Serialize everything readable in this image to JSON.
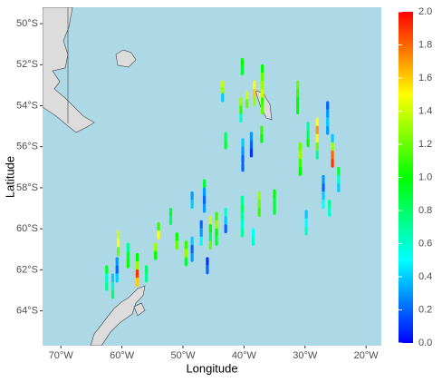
{
  "chart_data": {
    "type": "map",
    "x_label": "Longitude",
    "y_label": "Latitude",
    "xlim": [
      -73,
      -17.5
    ],
    "xticks": [
      {
        "value": -70,
        "label": "70°W"
      },
      {
        "value": -60,
        "label": "60°W"
      },
      {
        "value": -50,
        "label": "50°W"
      },
      {
        "value": -40,
        "label": "40°W"
      },
      {
        "value": -30,
        "label": "30°W"
      },
      {
        "value": -20,
        "label": "20°W"
      }
    ],
    "ylim": [
      -65.7,
      -49.2
    ],
    "yticks": [
      {
        "value": -50,
        "label": "50°S"
      },
      {
        "value": -52,
        "label": "52°S"
      },
      {
        "value": -54,
        "label": "54°S"
      },
      {
        "value": -56,
        "label": "56°S"
      },
      {
        "value": -58,
        "label": "58°S"
      },
      {
        "value": -60,
        "label": "60°S"
      },
      {
        "value": -62,
        "label": "62°S"
      },
      {
        "value": -64,
        "label": "64°S"
      }
    ],
    "clim": [
      0,
      2
    ],
    "cticks": [
      {
        "value": 0,
        "label": "0.0"
      },
      {
        "value": 0.2,
        "label": "0.2"
      },
      {
        "value": 0.4,
        "label": "0.4"
      },
      {
        "value": 0.6,
        "label": "0.6"
      },
      {
        "value": 0.8,
        "label": "0.8"
      },
      {
        "value": 1,
        "label": "1.0"
      },
      {
        "value": 1.2,
        "label": "1.2"
      },
      {
        "value": 1.4,
        "label": "1.4"
      },
      {
        "value": 1.6,
        "label": "1.6"
      },
      {
        "value": 1.8,
        "label": "1.8"
      },
      {
        "value": 2,
        "label": "2.0"
      }
    ],
    "colorscale": [
      "#0000ff",
      "#00ffff",
      "#00ff00",
      "#ffff00",
      "#ff0000"
    ],
    "ocean_color": "#add8e6",
    "x": [
      -43.5,
      -43.5,
      -43.5,
      -40.3,
      -40.3,
      -37,
      -37,
      -37,
      -37,
      -37,
      -37,
      -38.3,
      -38.3,
      -38.3,
      -40.5,
      -40.5,
      -40.5,
      -39.5,
      -39.5,
      -38.8,
      -38.8,
      -38.8,
      -40.2,
      -40.2,
      -40.2,
      -40.2,
      -43,
      -43,
      -37.1,
      -37.1,
      -31.2,
      -31.2,
      -31.2,
      -31.2,
      -26.3,
      -26.3,
      -26.3,
      -26.3,
      -25.5,
      -25.5,
      -25.5,
      -25.5,
      -28,
      -28,
      -28,
      -28,
      -28,
      -29.5,
      -29.5,
      -29.5,
      -30.8,
      -30.8,
      -30.8,
      -30.8,
      -24.5,
      -24.5,
      -24.5,
      -27,
      -27,
      -27,
      -27,
      -29.8,
      -29.8,
      -29.8,
      -26,
      -26,
      -37.5,
      -37.5,
      -37.5,
      -35,
      -35,
      -35,
      -40.3,
      -40.3,
      -40.3,
      -40.3,
      -40.3,
      -38.5,
      -38.5,
      -46.5,
      -46.5,
      -46.5,
      -46.5,
      -48.5,
      -48.5,
      -44.5,
      -44.5,
      -44.5,
      -44.5,
      -45.5,
      -45.5,
      -45.5,
      -45.5,
      -47,
      -47,
      -47,
      -43,
      -43,
      -43,
      -48.5,
      -48.5,
      -48.5,
      -49.5,
      -49.5,
      -49.5,
      -52,
      -52,
      -51,
      -51,
      -54,
      -54,
      -54.5,
      -54.5,
      -46,
      -46,
      -60.6,
      -60.6,
      -60.6,
      -59,
      -59,
      -59,
      -57.5,
      -57.5,
      -57.5,
      -57.5,
      -60.8,
      -60.8,
      -60.8,
      -62.5,
      -62.5,
      -62.5,
      -61.5,
      -61.5,
      -61.5,
      -56,
      -56
    ],
    "y": [
      -53,
      -53.3,
      -53.6,
      -51.9,
      -52.3,
      -52.2,
      -52.6,
      -53,
      -53.4,
      -53.8,
      -54.2,
      -53,
      -53.4,
      -53.8,
      -53.8,
      -54.2,
      -54.6,
      -53.5,
      -53.9,
      -55.5,
      -55.9,
      -56.3,
      -55.8,
      -56.2,
      -56.6,
      -57,
      -55.5,
      -55.9,
      -55.2,
      -55.6,
      -53,
      -53.4,
      -53.8,
      -54.2,
      -54,
      -54.4,
      -54.8,
      -55.2,
      -55.6,
      -56,
      -56.4,
      -56.8,
      -54.8,
      -55.2,
      -55.6,
      -56,
      -56.4,
      -55,
      -55.4,
      -55.8,
      -56,
      -56.4,
      -56.8,
      -57.2,
      -57.2,
      -57.6,
      -58,
      -57.6,
      -58,
      -58.4,
      -58.8,
      -59.3,
      -59.7,
      -60.1,
      -58.8,
      -59.2,
      -58.4,
      -58.8,
      -59.2,
      -58.3,
      -58.7,
      -59.1,
      -58.6,
      -59,
      -59.4,
      -59.8,
      -60.2,
      -60.2,
      -60.6,
      -57.8,
      -58.2,
      -58.6,
      -59,
      -58.4,
      -58.8,
      -59.4,
      -59.8,
      -60.2,
      -60.6,
      -59.6,
      -60,
      -60.4,
      -60.8,
      -59.8,
      -60.2,
      -60.6,
      -59.2,
      -59.6,
      -60,
      -60.6,
      -61,
      -61.4,
      -60.8,
      -61.2,
      -61.6,
      -59.2,
      -59.6,
      -60.4,
      -60.8,
      -59.9,
      -60.3,
      -60.9,
      -61.3,
      -61.6,
      -62,
      -60.3,
      -60.7,
      -61.1,
      -60.9,
      -61.3,
      -61.7,
      -61.4,
      -61.8,
      -62.2,
      -62.6,
      -61.6,
      -62,
      -62.4,
      -62,
      -62.4,
      -62.8,
      -62.4,
      -62.8,
      -63.2,
      -62,
      -62.4
    ],
    "values": [
      1.4,
      1.3,
      0.4,
      1,
      0.9,
      1,
      1.2,
      1.3,
      1.4,
      1.1,
      1.2,
      1.5,
      1.6,
      1.3,
      1.3,
      1.1,
      0.6,
      1.4,
      1.2,
      0.3,
      0.2,
      0.1,
      0.4,
      0.3,
      0.2,
      0.2,
      0.8,
      0.9,
      1.1,
      1,
      1.2,
      1.1,
      1,
      1,
      0.2,
      0.3,
      0.4,
      0.3,
      0.4,
      1.3,
      1.8,
      1.9,
      1.5,
      1.7,
      1.5,
      1.2,
      0.7,
      0.7,
      0.8,
      1,
      1.2,
      1.3,
      1.1,
      1,
      0.9,
      0.6,
      0.4,
      0.3,
      0.2,
      0.4,
      0.5,
      0.4,
      0.5,
      0.6,
      0.7,
      0.6,
      1.3,
      1.2,
      1.1,
      1,
      0.9,
      0.9,
      0.7,
      0.8,
      0.7,
      0.6,
      0.7,
      0.5,
      0.6,
      0.9,
      0.3,
      0.2,
      0.3,
      0.3,
      0.4,
      1.1,
      1.3,
      1,
      0.9,
      1.4,
      1,
      0.8,
      1.2,
      0.2,
      0.3,
      0.5,
      0.6,
      0.4,
      0.2,
      0.4,
      0.2,
      0.3,
      1.1,
      1.3,
      0.9,
      0.9,
      0.8,
      1,
      1.2,
      1.1,
      1.5,
      1.3,
      1,
      0.1,
      0.2,
      1.4,
      1.5,
      1.2,
      0.7,
      0.9,
      1,
      1,
      1.3,
      1.9,
      1.6,
      0.3,
      0.2,
      0.4,
      0.9,
      0.6,
      0.7,
      0.4,
      0.6,
      0.8,
      0.8,
      0.7
    ]
  }
}
